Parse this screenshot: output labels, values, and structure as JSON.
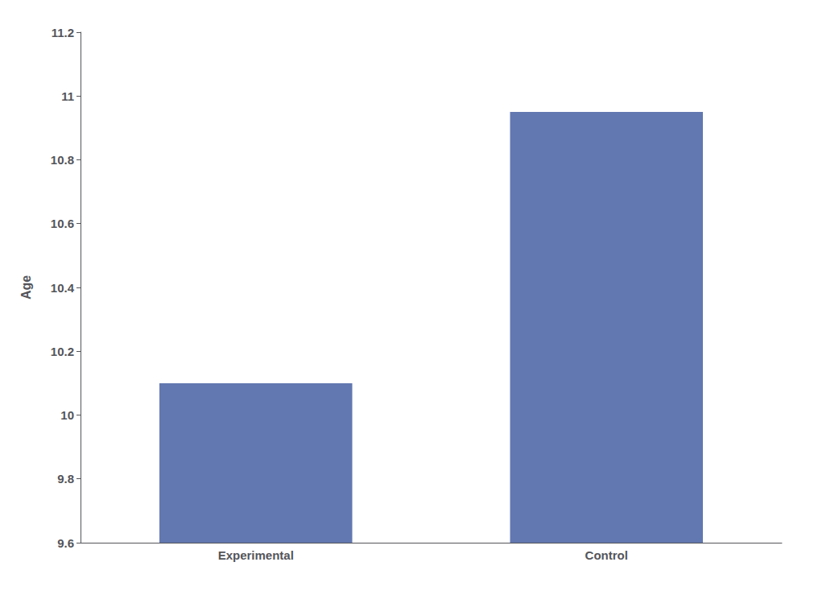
{
  "chart_data": {
    "type": "bar",
    "categories": [
      "Experimental",
      "Control"
    ],
    "values": [
      10.1,
      10.95
    ],
    "color": "#6278b0",
    "ylabel": "Age",
    "ylim": [
      9.6,
      11.2
    ],
    "yticks": [
      9.6,
      9.8,
      10,
      10.2,
      10.4,
      10.6,
      10.8,
      11,
      11.2
    ],
    "grid": false
  }
}
